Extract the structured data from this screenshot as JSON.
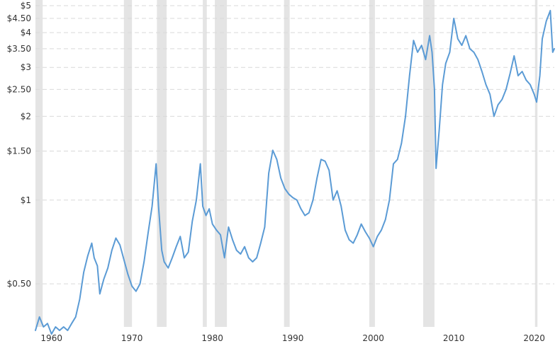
{
  "chart_data": {
    "type": "line",
    "title": "",
    "xlabel": "",
    "ylabel": "",
    "y_scale": "log",
    "ylim": [
      0.35,
      5
    ],
    "xlim": [
      1958,
      2022.5
    ],
    "grid": "horizontal, dashed",
    "y_ticks": [
      {
        "value": 5,
        "label": "$5"
      },
      {
        "value": 4.5,
        "label": "$4.50"
      },
      {
        "value": 4,
        "label": "$4"
      },
      {
        "value": 3.5,
        "label": "$3.50"
      },
      {
        "value": 3,
        "label": "$3"
      },
      {
        "value": 2.5,
        "label": "$2.50"
      },
      {
        "value": 2,
        "label": "$2"
      },
      {
        "value": 1.5,
        "label": "$1.50"
      },
      {
        "value": 1,
        "label": "$1"
      },
      {
        "value": 0.5,
        "label": "$0.50"
      }
    ],
    "x_ticks": [
      {
        "value": 1960,
        "label": "1960"
      },
      {
        "value": 1970,
        "label": "1970"
      },
      {
        "value": 1980,
        "label": "1980"
      },
      {
        "value": 1990,
        "label": "1990"
      },
      {
        "value": 2000,
        "label": "2000"
      },
      {
        "value": 2010,
        "label": "2010"
      },
      {
        "value": 2020,
        "label": "2020"
      }
    ],
    "recession_periods": [
      [
        1958.0,
        1958.9
      ],
      [
        1969.0,
        1970.0
      ],
      [
        1973.1,
        1974.3
      ],
      [
        1978.8,
        1979.3
      ],
      [
        1980.3,
        1981.8
      ],
      [
        1988.9,
        1989.6
      ],
      [
        1999.5,
        2000.2
      ],
      [
        2006.2,
        2007.6
      ],
      [
        2020.1,
        2020.4
      ]
    ],
    "series": [
      {
        "name": "",
        "color": "#5b9bd5",
        "points": [
          [
            1958.0,
            0.34
          ],
          [
            1958.5,
            0.38
          ],
          [
            1959.0,
            0.35
          ],
          [
            1959.5,
            0.36
          ],
          [
            1960.0,
            0.33
          ],
          [
            1960.5,
            0.35
          ],
          [
            1961.0,
            0.34
          ],
          [
            1961.5,
            0.35
          ],
          [
            1962.0,
            0.34
          ],
          [
            1962.5,
            0.36
          ],
          [
            1963.0,
            0.38
          ],
          [
            1963.5,
            0.44
          ],
          [
            1964.0,
            0.55
          ],
          [
            1964.5,
            0.63
          ],
          [
            1965.0,
            0.7
          ],
          [
            1965.3,
            0.62
          ],
          [
            1965.7,
            0.58
          ],
          [
            1966.0,
            0.46
          ],
          [
            1966.5,
            0.52
          ],
          [
            1967.0,
            0.57
          ],
          [
            1967.5,
            0.66
          ],
          [
            1968.0,
            0.73
          ],
          [
            1968.5,
            0.69
          ],
          [
            1969.0,
            0.61
          ],
          [
            1969.5,
            0.54
          ],
          [
            1970.0,
            0.49
          ],
          [
            1970.5,
            0.47
          ],
          [
            1971.0,
            0.5
          ],
          [
            1971.5,
            0.6
          ],
          [
            1972.0,
            0.76
          ],
          [
            1972.5,
            0.95
          ],
          [
            1973.0,
            1.35
          ],
          [
            1973.3,
            0.95
          ],
          [
            1973.7,
            0.66
          ],
          [
            1974.0,
            0.6
          ],
          [
            1974.5,
            0.57
          ],
          [
            1975.0,
            0.62
          ],
          [
            1975.5,
            0.68
          ],
          [
            1976.0,
            0.74
          ],
          [
            1976.5,
            0.62
          ],
          [
            1977.0,
            0.65
          ],
          [
            1977.5,
            0.84
          ],
          [
            1978.0,
            1.0
          ],
          [
            1978.5,
            1.35
          ],
          [
            1978.8,
            0.95
          ],
          [
            1979.2,
            0.88
          ],
          [
            1979.6,
            0.93
          ],
          [
            1980.0,
            0.82
          ],
          [
            1980.5,
            0.78
          ],
          [
            1981.0,
            0.75
          ],
          [
            1981.5,
            0.62
          ],
          [
            1982.0,
            0.8
          ],
          [
            1982.5,
            0.72
          ],
          [
            1983.0,
            0.66
          ],
          [
            1983.5,
            0.64
          ],
          [
            1984.0,
            0.68
          ],
          [
            1984.5,
            0.62
          ],
          [
            1985.0,
            0.6
          ],
          [
            1985.5,
            0.62
          ],
          [
            1986.0,
            0.7
          ],
          [
            1986.5,
            0.8
          ],
          [
            1987.0,
            1.25
          ],
          [
            1987.5,
            1.51
          ],
          [
            1988.0,
            1.4
          ],
          [
            1988.5,
            1.2
          ],
          [
            1989.0,
            1.1
          ],
          [
            1989.5,
            1.05
          ],
          [
            1990.0,
            1.02
          ],
          [
            1990.5,
            1.0
          ],
          [
            1991.0,
            0.93
          ],
          [
            1991.5,
            0.88
          ],
          [
            1992.0,
            0.9
          ],
          [
            1992.5,
            1.0
          ],
          [
            1993.0,
            1.2
          ],
          [
            1993.5,
            1.4
          ],
          [
            1994.0,
            1.38
          ],
          [
            1994.5,
            1.28
          ],
          [
            1995.0,
            1.0
          ],
          [
            1995.5,
            1.08
          ],
          [
            1996.0,
            0.95
          ],
          [
            1996.5,
            0.78
          ],
          [
            1997.0,
            0.72
          ],
          [
            1997.5,
            0.7
          ],
          [
            1998.0,
            0.75
          ],
          [
            1998.5,
            0.82
          ],
          [
            1999.0,
            0.77
          ],
          [
            1999.5,
            0.73
          ],
          [
            2000.0,
            0.68
          ],
          [
            2000.5,
            0.74
          ],
          [
            2001.0,
            0.78
          ],
          [
            2001.5,
            0.85
          ],
          [
            2002.0,
            1.0
          ],
          [
            2002.5,
            1.35
          ],
          [
            2003.0,
            1.4
          ],
          [
            2003.5,
            1.6
          ],
          [
            2004.0,
            2.0
          ],
          [
            2004.5,
            2.8
          ],
          [
            2005.0,
            3.75
          ],
          [
            2005.5,
            3.4
          ],
          [
            2006.0,
            3.6
          ],
          [
            2006.5,
            3.2
          ],
          [
            2007.0,
            3.9
          ],
          [
            2007.3,
            3.4
          ],
          [
            2007.6,
            2.5
          ],
          [
            2007.8,
            1.3
          ],
          [
            2008.2,
            1.8
          ],
          [
            2008.6,
            2.6
          ],
          [
            2009.0,
            3.1
          ],
          [
            2009.5,
            3.4
          ],
          [
            2010.0,
            4.5
          ],
          [
            2010.5,
            3.8
          ],
          [
            2011.0,
            3.6
          ],
          [
            2011.5,
            3.9
          ],
          [
            2012.0,
            3.5
          ],
          [
            2012.5,
            3.4
          ],
          [
            2013.0,
            3.2
          ],
          [
            2013.5,
            2.9
          ],
          [
            2014.0,
            2.6
          ],
          [
            2014.5,
            2.4
          ],
          [
            2015.0,
            2.0
          ],
          [
            2015.5,
            2.2
          ],
          [
            2016.0,
            2.3
          ],
          [
            2016.5,
            2.5
          ],
          [
            2017.0,
            2.85
          ],
          [
            2017.5,
            3.3
          ],
          [
            2018.0,
            2.8
          ],
          [
            2018.5,
            2.9
          ],
          [
            2019.0,
            2.7
          ],
          [
            2019.5,
            2.6
          ],
          [
            2020.0,
            2.4
          ],
          [
            2020.3,
            2.25
          ],
          [
            2020.7,
            2.8
          ],
          [
            2021.0,
            3.8
          ],
          [
            2021.5,
            4.4
          ],
          [
            2022.0,
            4.8
          ],
          [
            2022.3,
            3.4
          ],
          [
            2022.5,
            3.5
          ]
        ]
      }
    ]
  }
}
